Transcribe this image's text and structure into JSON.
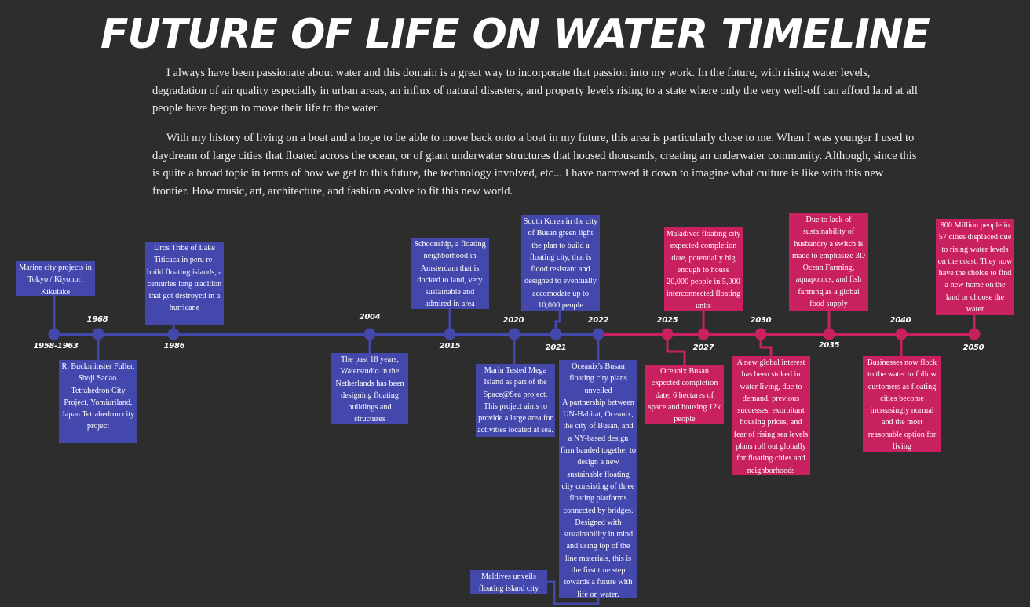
{
  "title": "Future of Life on Water Timeline",
  "intro": {
    "p1": "I always have been passionate about water and this domain is a great way to incorporate that passion into my work. In the future, with rising water levels, degradation of air quality especially in urban areas, an influx of natural disasters, and property levels rising to a state where only the very well-off can afford land at all people have begun to move their life to the water.",
    "p2": "With my history of living on a boat and a hope to be able to move back onto a boat in my future, this area is particularly close to me. When I was younger I used to daydream of large cities that floated across the ocean, or of giant underwater structures that housed thousands, creating an underwater community. Although, since this is quite a broad topic in terms of how we get to this future, the technology involved, etc... I have narrowed it down to imagine what culture is like with this new frontier. How music, art, architecture, and fashion evolve to fit this new world."
  },
  "colors": {
    "past": "#4448ad",
    "future": "#c9215f",
    "background": "#2d2d2d"
  },
  "events": [
    {
      "year": "1958-1963",
      "text": "Marine city projects in Tokyo / Kiyonori Kikutake"
    },
    {
      "year": "1968",
      "text": "R. Buckminster Fuller, Shoji Sadao. Tetrahedron City Project, Yomiuriland, Japan Tetrahedron city project"
    },
    {
      "year": "1986",
      "text": "Uros Tribe of Lake Titicaca in peru re-build floating islands, a centuries long tradition that got destroyed in a hurricane"
    },
    {
      "year": "2004",
      "text": "The past 18 years, Waterstudio in the Netherlands has been designing floating buildings and structures"
    },
    {
      "year": "2015",
      "text": "Schoonship, a floating neighborhood in Amsterdam that is docked to land, very sustainable and admired in area"
    },
    {
      "year": "2020",
      "text": "Marin Tested Mega Island as part of the Space@Sea project. This project aims to provide a large area for activities located at sea."
    },
    {
      "year": "2021",
      "text": "South Korea in the city of Busan green light the plan to build a floating city, that is flood resistant  and designed to eventually accomodate up to 10,000 people"
    },
    {
      "year": "2022",
      "text": "Oceanix's Busan floating city plans unveiled",
      "text2": "A partnership between UN-Habitat, Oceanix, the city of Busan, and a NY-based design firm banded together to design a new sustainable floating city consisting of three floating platforms connected by bridges. Designed with sustainability in mind and using top of the line materials, this is the first true step towards a future with life on water."
    },
    {
      "year": "",
      "text": "Maldives unveils floating island city"
    },
    {
      "year": "2025",
      "text": "Oceanix Busan expected completion date, 6 hectares of space and housing 12k people"
    },
    {
      "year": "2027",
      "text": "Maladives floating city expected completion date, potentially big enough to house 20,000 people in 5,000 interconnected floating units"
    },
    {
      "year": "2030",
      "text": "A new global interest has been stoked in water living, due to demand, previous successes, exorbitant housing prices, and fear of rising sea levels plans roll out globally for floating cities and neighborhoods"
    },
    {
      "year": "2035",
      "text": "Due to lack of sustainability of husbandry a switch is made to emphasize 3D Ocean Farming, aquaponics, and fish farming as a global food supply"
    },
    {
      "year": "2040",
      "text": "Businesses now flock to the water to follow customers as  floating cities become increasingly normal and the most reasonable option for living"
    },
    {
      "year": "2050",
      "text": "800 Million people in 57 cities displaced due to rising water levels on the coast. They now have the choice to find a new home on the land or choose the water"
    }
  ]
}
